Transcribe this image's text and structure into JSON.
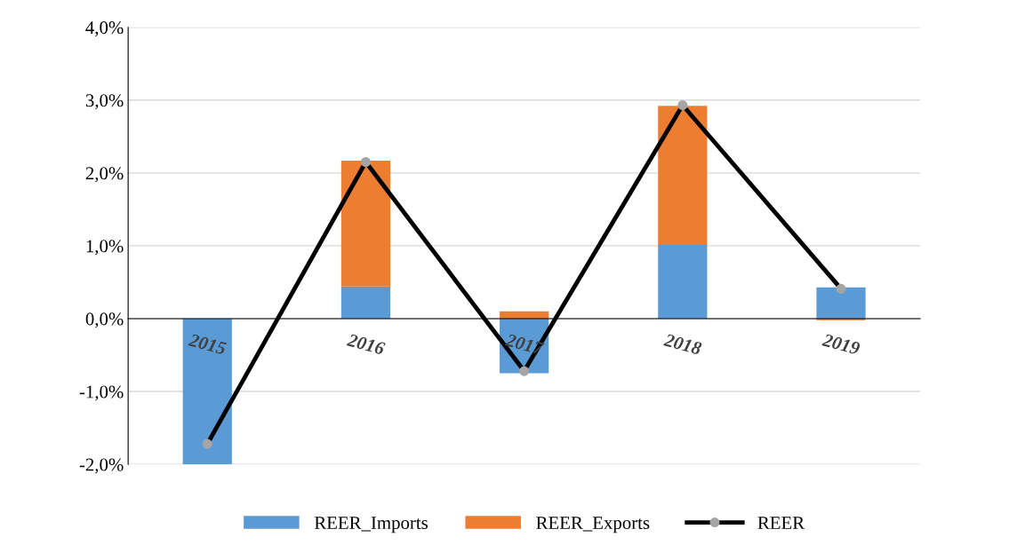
{
  "chart_data": {
    "type": "bar",
    "stacked": true,
    "categories": [
      "2015",
      "2016",
      "2017",
      "2018",
      "2019"
    ],
    "series": [
      {
        "name": "REER_Imports",
        "color": "#5b9bd5",
        "values": [
          -2.0,
          0.44,
          -0.75,
          1.01,
          0.43
        ]
      },
      {
        "name": "REER_Exports",
        "color": "#ed7d31",
        "values": [
          0,
          1.73,
          0.1,
          1.91,
          -0.02
        ]
      },
      {
        "name": "REER",
        "type": "line",
        "color": "#000000",
        "values": [
          -1.72,
          2.15,
          -0.72,
          2.93,
          0.41
        ]
      }
    ],
    "ylim": [
      -2,
      4
    ],
    "yticks": [
      {
        "value": -2,
        "label": "-2,0%"
      },
      {
        "value": -1,
        "label": "-1,0%"
      },
      {
        "value": 0,
        "label": "0,0%"
      },
      {
        "value": 1,
        "label": "1,0%"
      },
      {
        "value": 2,
        "label": "2,0%"
      },
      {
        "value": 3,
        "label": "3,0%"
      },
      {
        "value": 4,
        "label": "4,0%"
      }
    ],
    "grid": "y",
    "legend": "bottom",
    "marker": "circle",
    "line_style": "solid"
  }
}
